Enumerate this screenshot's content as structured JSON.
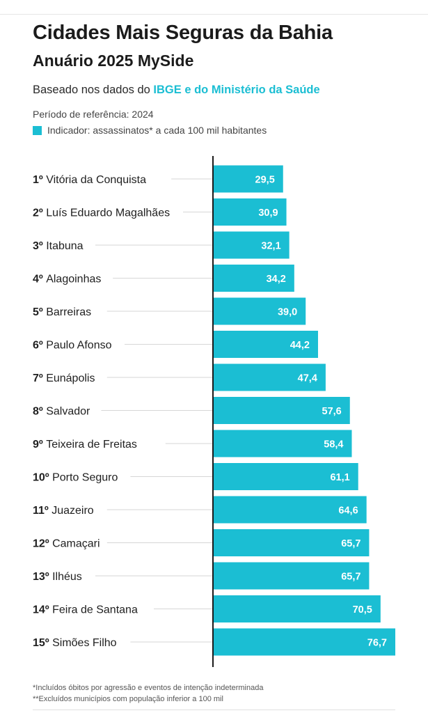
{
  "header": {
    "title": "Cidades Mais Seguras da Bahia",
    "subtitle": "Anuário 2025 MySide",
    "source_prefix": "Baseado nos dados do ",
    "source_highlight": "IBGE e do Ministério da Saúde",
    "period": "Período de referência: 2024",
    "legend": "Indicador: assassinatos* a cada 100 mil habitantes"
  },
  "colors": {
    "bar": "#1bbed3",
    "axis": "#1a1a1a",
    "guide": "#d6d6d6",
    "value_text": "#ffffff"
  },
  "chart_data": {
    "type": "bar",
    "orientation": "horizontal",
    "categories": [
      "1º Vitória da Conquista",
      "2º Luís Eduardo Magalhães",
      "3º Itabuna",
      "4º Alagoinhas",
      "5º Barreiras",
      "6º Paulo Afonso",
      "7º Eunápolis",
      "8º Salvador",
      "9º Teixeira de Freitas",
      "10º Porto Seguro",
      "11º Juazeiro",
      "12º Camaçari",
      "13º Ilhéus",
      "14º Feira de Santana",
      "15º Simões Filho"
    ],
    "values": [
      29.5,
      30.9,
      32.1,
      34.2,
      39.0,
      44.2,
      47.4,
      57.6,
      58.4,
      61.1,
      64.6,
      65.7,
      65.7,
      70.5,
      76.7
    ],
    "value_labels": [
      "29,5",
      "30,9",
      "32,1",
      "34,2",
      "39,0",
      "44,2",
      "47,4",
      "57,6",
      "58,4",
      "61,1",
      "64,6",
      "65,7",
      "65,7",
      "70,5",
      "76,7"
    ],
    "xlim": [
      0,
      76.7
    ],
    "grid": false,
    "legend_position": "top-left"
  },
  "footnotes": {
    "note1": "*Incluídos óbitos por agressão e eventos de intenção indeterminada",
    "note2": "**Excluídos municípios com população inferior a 100 mil"
  }
}
